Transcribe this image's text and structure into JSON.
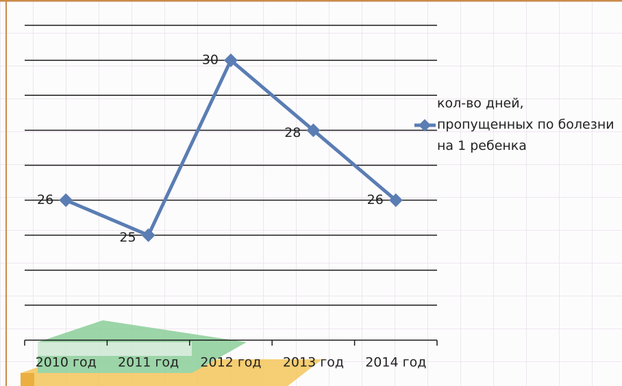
{
  "chart_data": {
    "type": "line",
    "categories": [
      "2010 год",
      "2011 год",
      "2012 год",
      "2013 год",
      "2014 год"
    ],
    "series": [
      {
        "name": "кол-во дней, пропущенных по болезни на 1 ребенка",
        "color": "#5a7db3",
        "values": [
          26,
          25,
          30,
          28,
          26
        ]
      }
    ],
    "ylim": [
      22,
      31
    ],
    "yticks": [
      22,
      23,
      24,
      25,
      26,
      27,
      28,
      29,
      30,
      31
    ],
    "grid": true,
    "legend": "right"
  }
}
